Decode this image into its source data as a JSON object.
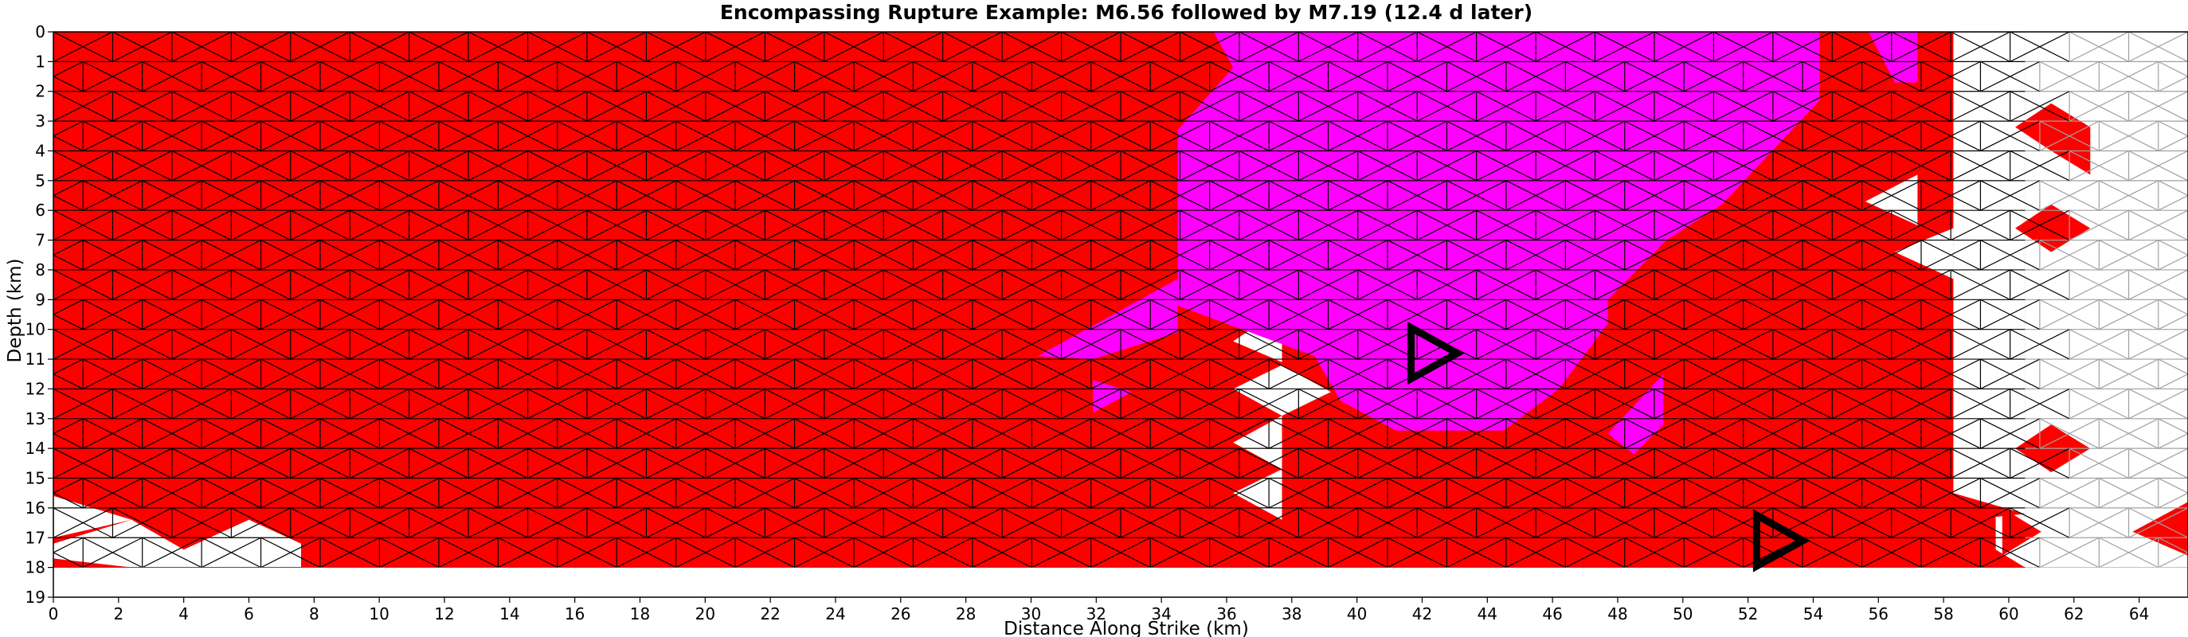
{
  "chart_data": {
    "type": "triangular-mesh-fault-map",
    "title": "Encompassing Rupture Example: M6.56 followed by M7.19 (12.4 d later)",
    "xlabel": "Distance Along Strike (km)",
    "ylabel": "Depth (km)",
    "xlim": [
      0,
      65.5
    ],
    "ylim": [
      19,
      0
    ],
    "x_ticks": [
      0,
      2,
      4,
      6,
      8,
      10,
      12,
      14,
      16,
      18,
      20,
      22,
      24,
      26,
      28,
      30,
      32,
      34,
      36,
      38,
      40,
      42,
      44,
      46,
      48,
      50,
      52,
      54,
      56,
      58,
      60,
      62,
      64
    ],
    "y_ticks": [
      0,
      1,
      2,
      3,
      4,
      5,
      6,
      7,
      8,
      9,
      10,
      11,
      12,
      13,
      14,
      15,
      16,
      17,
      18,
      19
    ],
    "colors": {
      "first_event": "#ff0000",
      "second_event": "#ff00ff",
      "unruptured": "#ffffff",
      "ruptured_edge": "#000000",
      "unruptured_edge": "#a0a0a0",
      "hypocenter_marker": "#000000"
    },
    "mesh": {
      "x_min": 0,
      "x_max": 65.5,
      "depth_min": 0,
      "depth_max": 18,
      "rows": 18,
      "columns": 37
    },
    "magenta_region": [
      [
        36.2,
        0
      ],
      [
        54.2,
        0
      ],
      [
        54.2,
        2.3
      ],
      [
        51.2,
        5.8
      ],
      [
        49.5,
        7
      ],
      [
        47.7,
        9
      ],
      [
        47.7,
        9.8
      ],
      [
        46.2,
        12
      ],
      [
        44.5,
        13.4
      ],
      [
        41.2,
        13.4
      ],
      [
        39.5,
        12.4
      ],
      [
        38.7,
        10.9
      ],
      [
        34.5,
        9.2
      ],
      [
        34.5,
        3.3
      ],
      [
        36.2,
        1.2
      ]
    ],
    "magenta_secondary": [
      [
        [
          36.2,
          1.2
        ],
        [
          37.7,
          0
        ],
        [
          35.6,
          0
        ]
      ],
      [
        [
          30.2,
          10.9
        ],
        [
          34.5,
          8.3
        ],
        [
          34.5,
          10.1
        ],
        [
          31.9,
          11
        ]
      ],
      [
        [
          31.9,
          11.7
        ],
        [
          33.1,
          12.1
        ],
        [
          31.9,
          12.8
        ]
      ],
      [
        [
          47.7,
          13.5
        ],
        [
          49.4,
          11.5
        ],
        [
          49.4,
          13.2
        ],
        [
          48.5,
          14.2
        ]
      ],
      [
        [
          55.7,
          0
        ],
        [
          57.2,
          0
        ],
        [
          57.2,
          1.7
        ],
        [
          56.5,
          1.7
        ]
      ]
    ],
    "white_in_red": [
      [
        [
          36.2,
          1.2
        ],
        [
          37.7,
          0.4
        ],
        [
          37.7,
          1.9
        ]
      ],
      [
        [
          36.2,
          2.2
        ],
        [
          37.7,
          1.9
        ],
        [
          37.7,
          3.7
        ]
      ],
      [
        [
          36.2,
          3.8
        ],
        [
          37.7,
          4.6
        ],
        [
          36.2,
          5.3
        ]
      ],
      [
        [
          36.2,
          10.4
        ],
        [
          37.7,
          9.3
        ],
        [
          37.7,
          11.1
        ]
      ],
      [
        [
          36.2,
          12
        ],
        [
          37.7,
          11.2
        ],
        [
          39.2,
          12.1
        ],
        [
          37.7,
          12.9
        ]
      ],
      [
        [
          36.2,
          13.8
        ],
        [
          37.7,
          12.9
        ],
        [
          37.7,
          14.7
        ]
      ],
      [
        [
          36.2,
          15.5
        ],
        [
          37.7,
          14.7
        ],
        [
          37.7,
          16.4
        ]
      ],
      [
        [
          55.6,
          5.7
        ],
        [
          57.2,
          4.8
        ],
        [
          57.2,
          6.5
        ]
      ],
      [
        [
          56.5,
          7.4
        ],
        [
          58.3,
          6.6
        ],
        [
          58.3,
          8.3
        ]
      ],
      [
        [
          0,
          15.6
        ],
        [
          2.4,
          16.4
        ],
        [
          0,
          17
        ]
      ],
      [
        [
          0,
          17.2
        ],
        [
          2.4,
          16.4
        ],
        [
          4.0,
          17.4
        ],
        [
          6.0,
          16.4
        ],
        [
          7.6,
          17.2
        ],
        [
          7.6,
          18
        ],
        [
          2.4,
          18
        ],
        [
          0,
          17.7
        ]
      ],
      [
        [
          58.3,
          0
        ],
        [
          60.5,
          0
        ],
        [
          60.5,
          16.2
        ],
        [
          58.3,
          15.5
        ]
      ],
      [
        [
          59.6,
          16.3
        ],
        [
          60.5,
          16.2
        ],
        [
          60.5,
          18
        ],
        [
          59.6,
          17.4
        ]
      ]
    ],
    "red_right_patches": [
      [
        [
          59.8,
          16
        ],
        [
          61,
          16.8
        ],
        [
          59.8,
          17.6
        ]
      ],
      [
        [
          60.2,
          3.2
        ],
        [
          61.3,
          2.4
        ],
        [
          62.5,
          3.2
        ],
        [
          62.5,
          4.8
        ],
        [
          61.3,
          4.0
        ]
      ],
      [
        [
          60.2,
          6.6
        ],
        [
          61.3,
          5.8
        ],
        [
          62.5,
          6.6
        ],
        [
          61.3,
          7.4
        ]
      ],
      [
        [
          60.2,
          14.0
        ],
        [
          61.3,
          13.2
        ],
        [
          62.5,
          14.0
        ],
        [
          61.3,
          14.8
        ]
      ],
      [
        [
          63.8,
          16.8
        ],
        [
          65.5,
          15.8
        ],
        [
          65.5,
          17.6
        ]
      ]
    ],
    "hypocenters": [
      {
        "event": "M6.56",
        "x": 42.3,
        "depth": 10.8
      },
      {
        "event": "M7.19",
        "x": 52.9,
        "depth": 17.1
      }
    ]
  }
}
